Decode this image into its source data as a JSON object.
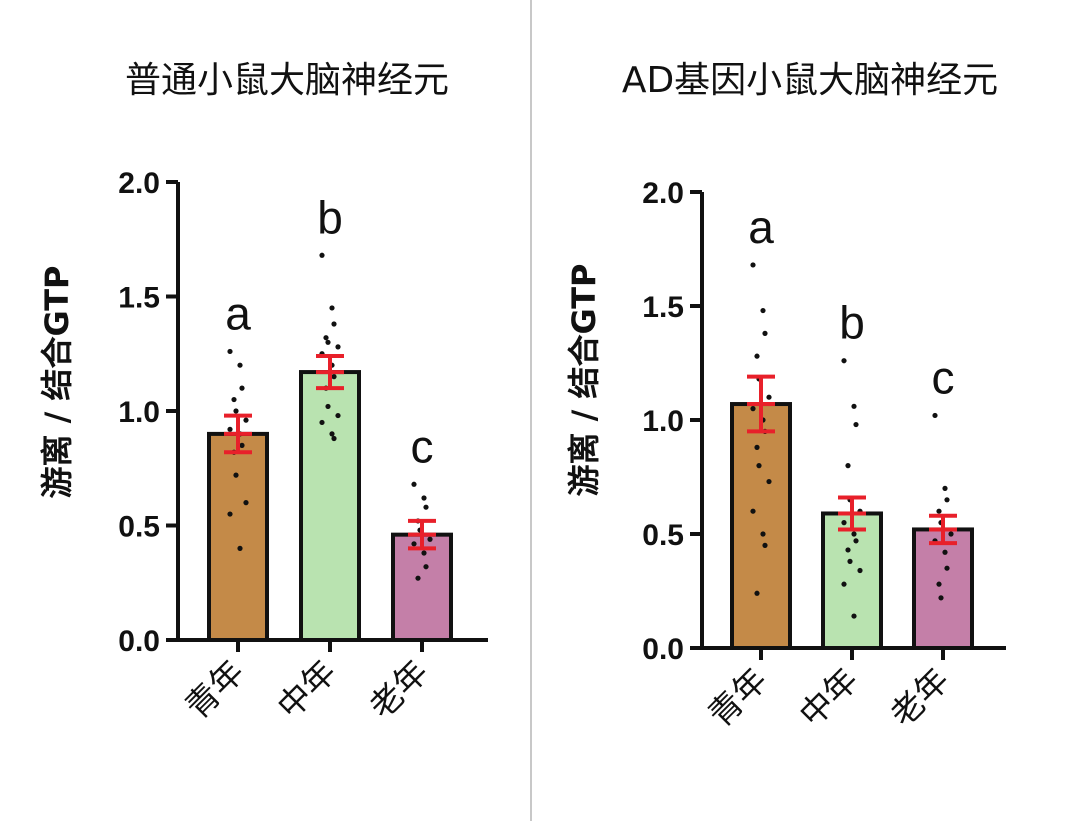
{
  "chart_data": [
    {
      "type": "bar",
      "title": "普通小鼠大脑神经元",
      "ylabel": "游离 / 结合GTP",
      "xlabel": "",
      "ylim": [
        0,
        2.0
      ],
      "yticks": [
        "0.0",
        "0.5",
        "1.0",
        "1.5",
        "2.0"
      ],
      "categories": [
        "青年",
        "中年",
        "老年"
      ],
      "values": [
        0.9,
        1.17,
        0.46
      ],
      "errors": [
        0.08,
        0.07,
        0.06
      ],
      "significance": [
        "a",
        "b",
        "c"
      ],
      "colors": [
        "#c48a48",
        "#b9e3b0",
        "#c47fa8"
      ],
      "points": [
        [
          1.26,
          1.2,
          1.1,
          1.05,
          1.0,
          0.96,
          0.92,
          0.9,
          0.85,
          0.82,
          0.72,
          0.6,
          0.55,
          0.4
        ],
        [
          1.68,
          1.45,
          1.38,
          1.32,
          1.3,
          1.28,
          1.25,
          1.2,
          1.15,
          1.1,
          1.02,
          0.98,
          0.95,
          0.9,
          0.88
        ],
        [
          0.68,
          0.62,
          0.58,
          0.52,
          0.48,
          0.44,
          0.42,
          0.38,
          0.32,
          0.27
        ]
      ]
    },
    {
      "type": "bar",
      "title": "AD基因小鼠大脑神经元",
      "ylabel": "游离 / 结合GTP",
      "xlabel": "",
      "ylim": [
        0,
        2.0
      ],
      "yticks": [
        "0.0",
        "0.5",
        "1.0",
        "1.5",
        "2.0"
      ],
      "categories": [
        "青年",
        "中年",
        "老年"
      ],
      "values": [
        1.07,
        0.59,
        0.52
      ],
      "errors": [
        0.12,
        0.07,
        0.06
      ],
      "significance": [
        "a",
        "b",
        "c"
      ],
      "colors": [
        "#c48a48",
        "#b9e3b0",
        "#c47fa8"
      ],
      "points": [
        [
          1.68,
          1.48,
          1.38,
          1.28,
          1.18,
          1.1,
          1.05,
          1.0,
          0.95,
          0.88,
          0.8,
          0.73,
          0.6,
          0.5,
          0.45,
          0.24
        ],
        [
          1.26,
          1.06,
          0.98,
          0.8,
          0.65,
          0.6,
          0.55,
          0.5,
          0.47,
          0.43,
          0.38,
          0.34,
          0.28,
          0.14
        ],
        [
          1.02,
          0.7,
          0.65,
          0.6,
          0.55,
          0.5,
          0.47,
          0.42,
          0.35,
          0.28,
          0.22
        ]
      ]
    }
  ],
  "colors": {
    "error_bar": "#e8202a",
    "axis": "#111111",
    "divider": "#c8c8c8"
  }
}
